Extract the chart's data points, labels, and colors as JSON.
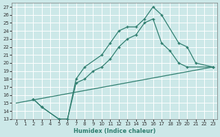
{
  "xlabel": "Humidex (Indice chaleur)",
  "xlim": [
    -0.5,
    23.5
  ],
  "ylim": [
    13,
    27.5
  ],
  "xticks": [
    0,
    1,
    2,
    3,
    4,
    5,
    6,
    7,
    8,
    9,
    10,
    11,
    12,
    13,
    14,
    15,
    16,
    17,
    18,
    19,
    20,
    21,
    22,
    23
  ],
  "yticks": [
    13,
    14,
    15,
    16,
    17,
    18,
    19,
    20,
    21,
    22,
    23,
    24,
    25,
    26,
    27
  ],
  "bg_color": "#cce8e8",
  "line_color": "#2e7d6e",
  "grid_color": "#ffffff",
  "lines": [
    {
      "x": [
        2,
        3,
        5,
        6,
        7,
        8,
        10,
        11,
        12,
        13,
        14,
        15,
        16,
        17,
        19,
        20,
        21,
        23
      ],
      "y": [
        15.5,
        14.5,
        13.0,
        13.0,
        18.0,
        19.5,
        21.0,
        22.5,
        24.0,
        24.5,
        24.5,
        25.5,
        27.0,
        26.0,
        22.5,
        22.0,
        20.0,
        19.5
      ],
      "has_markers": true
    },
    {
      "x": [
        2,
        3,
        5,
        6,
        7,
        8,
        9,
        10,
        11,
        12,
        13,
        14,
        15,
        16,
        17,
        18,
        19,
        20,
        23
      ],
      "y": [
        15.5,
        14.5,
        13.0,
        13.0,
        17.5,
        18.0,
        19.0,
        19.5,
        20.5,
        22.0,
        23.0,
        23.5,
        25.0,
        25.5,
        22.5,
        21.5,
        20.0,
        19.5,
        19.5
      ],
      "has_markers": true
    },
    {
      "x": [
        0,
        23
      ],
      "y": [
        15.0,
        19.5
      ],
      "has_markers": false
    }
  ]
}
